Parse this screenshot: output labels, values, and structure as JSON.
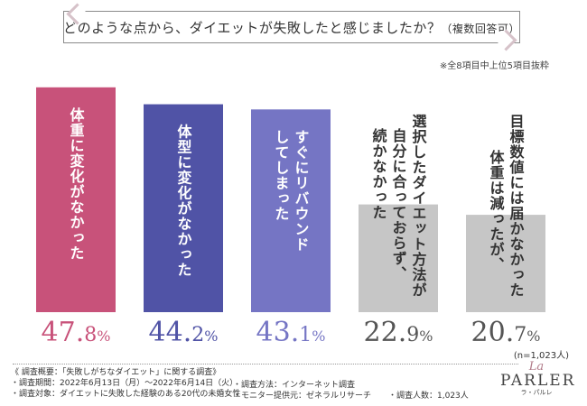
{
  "title": {
    "main": "どのような点から、ダイエットが失敗したと感じましたか？",
    "sub": "（複数回答可）"
  },
  "note": "※全8項目中上位5項目抜粋",
  "n_label": "(n=1,023人)",
  "chart_data": {
    "type": "bar",
    "title": "どのような点から、ダイエットが失敗したと感じましたか？（複数回答可）",
    "categories": [
      "体重に変化がなかった",
      "体型に変化がなかった",
      "すぐにリバウンドしてしまった",
      "選択したダイエット方法が自分に合っておらず、続かなかった",
      "目標数値には届かなかったが、体重は減った"
    ],
    "category_lines": [
      [
        "体重に変化がなかった"
      ],
      [
        "体型に変化がなかった"
      ],
      [
        "してしまった",
        "すぐにリバウンド"
      ],
      [
        "続かなかった",
        "自分に合っておらず、",
        "選択したダイエット方法が"
      ],
      [
        "体重は減ったが、",
        "目標数値には届かなかった"
      ]
    ],
    "values": [
      47.8,
      44.2,
      43.1,
      22.9,
      20.7
    ],
    "value_labels": [
      {
        "int": "47.",
        "dec": "8",
        "unit": "%"
      },
      {
        "int": "44.",
        "dec": "2",
        "unit": "%"
      },
      {
        "int": "43.",
        "dec": "1",
        "unit": "%"
      },
      {
        "int": "22.",
        "dec": "9",
        "unit": "%"
      },
      {
        "int": "20.",
        "dec": "7",
        "unit": "%"
      }
    ],
    "colors": [
      "#c8527a",
      "#5053a6",
      "#7575c4",
      "#c6c6c6",
      "#c6c6c6"
    ],
    "label_colors": [
      "#c8527a",
      "#5053a6",
      "#7575c4",
      "#555555",
      "#555555"
    ],
    "ylim": [
      0,
      50
    ]
  },
  "survey": {
    "heading": "《 調査概要：「失敗しがちなダイエット」に関する調査》",
    "period": "・調査期間：2022年6月13日（月）〜2022年6月14日（火）",
    "target": "・調査対象：ダイエットに失敗した経験のある20代の未婚女性",
    "method": "・調査方法：インターネット調査",
    "provider": "・モニター提供元：ゼネラルリサーチ",
    "count": "・調査人数：1,023人"
  },
  "logo": {
    "la": "La",
    "main": "PARLER",
    "sub": "ラ・パルレ"
  }
}
